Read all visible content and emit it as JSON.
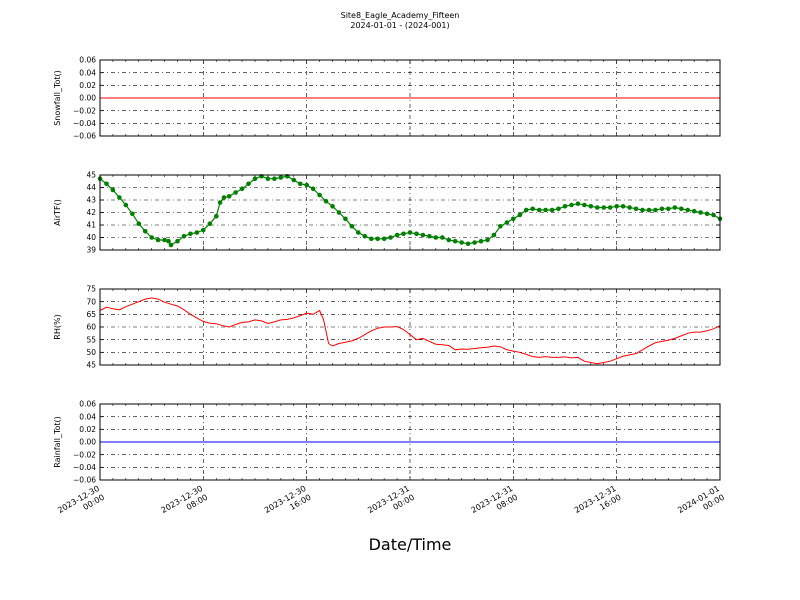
{
  "figure": {
    "title_line1": "Site8_Eagle_Academy_Fifteen",
    "title_line2": "2024-01-01 - (2024-001)",
    "xlabel": "Date/Time"
  },
  "chart_data": [
    {
      "type": "line",
      "ylabel": "Snowfall_Tot()",
      "ylim": [
        -0.06,
        0.06
      ],
      "yticks": [
        -0.06,
        -0.04,
        -0.02,
        0.0,
        0.02,
        0.04,
        0.06
      ],
      "ytick_labels": [
        "−0.06",
        "−0.04",
        "−0.02",
        "0.00",
        "0.02",
        "0.04",
        "0.06"
      ],
      "xlim": [
        0,
        48
      ],
      "x_unit": "hours since 2023-12-30 00:00",
      "grid": true,
      "series": [
        {
          "color": "#ff0000",
          "marker": false,
          "points": [
            [
              0,
              0.0
            ],
            [
              48,
              0.0
            ]
          ]
        }
      ]
    },
    {
      "type": "line",
      "ylabel": "AirTF()",
      "ylim": [
        39,
        45
      ],
      "yticks": [
        39,
        40,
        41,
        42,
        43,
        44,
        45
      ],
      "ytick_labels": [
        "39",
        "40",
        "41",
        "42",
        "43",
        "44",
        "45"
      ],
      "xlim": [
        0,
        48
      ],
      "grid": true,
      "series": [
        {
          "color": "#008000",
          "marker": true,
          "points": [
            [
              0,
              44.7
            ],
            [
              0.5,
              44.3
            ],
            [
              1,
              43.8
            ],
            [
              1.5,
              43.2
            ],
            [
              2,
              42.6
            ],
            [
              2.5,
              41.9
            ],
            [
              3,
              41.1
            ],
            [
              3.5,
              40.5
            ],
            [
              4,
              40.0
            ],
            [
              4.5,
              39.8
            ],
            [
              5,
              39.8
            ],
            [
              5.3,
              39.7
            ],
            [
              5.5,
              39.4
            ],
            [
              6,
              39.7
            ],
            [
              6.5,
              40.1
            ],
            [
              7,
              40.3
            ],
            [
              7.5,
              40.4
            ],
            [
              8,
              40.6
            ],
            [
              8.5,
              41.1
            ],
            [
              9,
              41.7
            ],
            [
              9.3,
              42.8
            ],
            [
              9.6,
              43.2
            ],
            [
              10,
              43.3
            ],
            [
              10.5,
              43.6
            ],
            [
              11,
              43.9
            ],
            [
              11.5,
              44.3
            ],
            [
              12,
              44.7
            ],
            [
              12.5,
              44.9
            ],
            [
              13,
              44.7
            ],
            [
              13.5,
              44.7
            ],
            [
              14,
              44.8
            ],
            [
              14.5,
              44.9
            ],
            [
              15,
              44.6
            ],
            [
              15.5,
              44.3
            ],
            [
              16,
              44.2
            ],
            [
              16.5,
              43.9
            ],
            [
              17,
              43.4
            ],
            [
              17.5,
              42.9
            ],
            [
              18,
              42.5
            ],
            [
              18.5,
              42.0
            ],
            [
              19,
              41.5
            ],
            [
              19.5,
              40.9
            ],
            [
              20,
              40.4
            ],
            [
              20.5,
              40.1
            ],
            [
              21,
              39.9
            ],
            [
              21.5,
              39.9
            ],
            [
              22,
              39.9
            ],
            [
              22.5,
              40.0
            ],
            [
              23,
              40.2
            ],
            [
              23.5,
              40.3
            ],
            [
              24,
              40.4
            ],
            [
              24.5,
              40.3
            ],
            [
              25,
              40.2
            ],
            [
              25.5,
              40.1
            ],
            [
              26,
              40.0
            ],
            [
              26.5,
              40.0
            ],
            [
              27,
              39.8
            ],
            [
              27.5,
              39.7
            ],
            [
              28,
              39.6
            ],
            [
              28.5,
              39.5
            ],
            [
              29,
              39.6
            ],
            [
              29.5,
              39.7
            ],
            [
              30,
              39.8
            ],
            [
              30.5,
              40.2
            ],
            [
              31,
              40.9
            ],
            [
              31.5,
              41.2
            ],
            [
              32,
              41.5
            ],
            [
              32.5,
              41.8
            ],
            [
              33,
              42.2
            ],
            [
              33.5,
              42.3
            ],
            [
              34,
              42.2
            ],
            [
              34.5,
              42.2
            ],
            [
              35,
              42.2
            ],
            [
              35.5,
              42.3
            ],
            [
              36,
              42.5
            ],
            [
              36.5,
              42.6
            ],
            [
              37,
              42.7
            ],
            [
              37.5,
              42.6
            ],
            [
              38,
              42.5
            ],
            [
              38.5,
              42.4
            ],
            [
              39,
              42.4
            ],
            [
              39.5,
              42.4
            ],
            [
              40,
              42.5
            ],
            [
              40.5,
              42.5
            ],
            [
              41,
              42.4
            ],
            [
              41.5,
              42.3
            ],
            [
              42,
              42.2
            ],
            [
              42.5,
              42.2
            ],
            [
              43,
              42.2
            ],
            [
              43.5,
              42.3
            ],
            [
              44,
              42.3
            ],
            [
              44.5,
              42.4
            ],
            [
              45,
              42.3
            ],
            [
              45.5,
              42.2
            ],
            [
              46,
              42.1
            ],
            [
              46.5,
              42.0
            ],
            [
              47,
              41.9
            ],
            [
              47.5,
              41.8
            ],
            [
              48,
              41.5
            ]
          ]
        }
      ]
    },
    {
      "type": "line",
      "ylabel": "RH(%)",
      "ylim": [
        45,
        75
      ],
      "yticks": [
        45,
        50,
        55,
        60,
        65,
        70,
        75
      ],
      "ytick_labels": [
        "45",
        "50",
        "55",
        "60",
        "65",
        "70",
        "75"
      ],
      "xlim": [
        0,
        48
      ],
      "grid": true,
      "series": [
        {
          "color": "#ff0000",
          "marker": false,
          "points": [
            [
              0,
              66.5
            ],
            [
              0.5,
              67.8
            ],
            [
              1,
              67.2
            ],
            [
              1.5,
              66.8
            ],
            [
              2,
              68.0
            ],
            [
              2.5,
              69.0
            ],
            [
              3,
              70.0
            ],
            [
              3.5,
              71.0
            ],
            [
              4,
              71.5
            ],
            [
              4.5,
              71.0
            ],
            [
              5,
              69.8
            ],
            [
              5.5,
              69.0
            ],
            [
              6,
              68.3
            ],
            [
              6.5,
              66.8
            ],
            [
              7,
              65.0
            ],
            [
              7.5,
              63.5
            ],
            [
              8,
              62.2
            ],
            [
              8.5,
              61.5
            ],
            [
              9,
              61.3
            ],
            [
              9.5,
              60.5
            ],
            [
              10,
              60.0
            ],
            [
              10.5,
              61.0
            ],
            [
              11,
              61.8
            ],
            [
              11.5,
              62.0
            ],
            [
              12,
              62.8
            ],
            [
              12.5,
              62.4
            ],
            [
              13,
              61.4
            ],
            [
              13.5,
              62.0
            ],
            [
              14,
              62.8
            ],
            [
              14.5,
              63.0
            ],
            [
              15,
              63.6
            ],
            [
              15.5,
              64.5
            ],
            [
              16,
              65.5
            ],
            [
              16.5,
              65.0
            ],
            [
              17,
              66.5
            ],
            [
              17.3,
              63.0
            ],
            [
              17.7,
              53.5
            ],
            [
              18,
              52.5
            ],
            [
              18.5,
              53.5
            ],
            [
              19,
              54.0
            ],
            [
              19.5,
              54.5
            ],
            [
              20,
              55.5
            ],
            [
              20.5,
              57.0
            ],
            [
              21,
              58.5
            ],
            [
              21.5,
              59.5
            ],
            [
              22,
              60.0
            ],
            [
              22.5,
              60.0
            ],
            [
              23,
              60.2
            ],
            [
              23.5,
              59.0
            ],
            [
              24,
              57.0
            ],
            [
              24.5,
              55.0
            ],
            [
              25,
              55.5
            ],
            [
              25.5,
              54.3
            ],
            [
              26,
              53.2
            ],
            [
              26.5,
              53.0
            ],
            [
              27,
              52.7
            ],
            [
              27.5,
              51.0
            ],
            [
              28,
              51.3
            ],
            [
              28.5,
              51.2
            ],
            [
              29,
              51.5
            ],
            [
              29.5,
              51.8
            ],
            [
              30,
              52.0
            ],
            [
              30.5,
              52.5
            ],
            [
              31,
              52.2
            ],
            [
              31.5,
              51.0
            ],
            [
              32,
              50.5
            ],
            [
              32.5,
              50.0
            ],
            [
              33,
              49.2
            ],
            [
              33.5,
              48.3
            ],
            [
              34,
              48.0
            ],
            [
              34.5,
              48.3
            ],
            [
              35,
              48.0
            ],
            [
              35.5,
              48.0
            ],
            [
              36,
              48.2
            ],
            [
              36.5,
              47.8
            ],
            [
              37,
              48.0
            ],
            [
              37.5,
              46.5
            ],
            [
              38,
              46.0
            ],
            [
              38.5,
              45.5
            ],
            [
              39,
              46.0
            ],
            [
              39.5,
              46.5
            ],
            [
              40,
              47.5
            ],
            [
              40.5,
              48.5
            ],
            [
              41,
              49.0
            ],
            [
              41.5,
              49.5
            ],
            [
              42,
              51.0
            ],
            [
              42.5,
              52.5
            ],
            [
              43,
              53.8
            ],
            [
              43.5,
              54.3
            ],
            [
              44,
              54.8
            ],
            [
              44.5,
              55.5
            ],
            [
              45,
              56.5
            ],
            [
              45.5,
              57.5
            ],
            [
              46,
              58.0
            ],
            [
              46.5,
              58.0
            ],
            [
              47,
              58.5
            ],
            [
              47.5,
              59.3
            ],
            [
              48,
              60.5
            ]
          ]
        }
      ]
    },
    {
      "type": "line",
      "ylabel": "Rainfall_Tot()",
      "ylim": [
        -0.06,
        0.06
      ],
      "yticks": [
        -0.06,
        -0.04,
        -0.02,
        0.0,
        0.02,
        0.04,
        0.06
      ],
      "ytick_labels": [
        "−0.06",
        "−0.04",
        "−0.02",
        "0.00",
        "0.02",
        "0.04",
        "0.06"
      ],
      "xlim": [
        0,
        48
      ],
      "grid": true,
      "series": [
        {
          "color": "#0000ff",
          "marker": false,
          "points": [
            [
              0,
              0.0
            ],
            [
              48,
              0.0
            ]
          ]
        }
      ]
    }
  ],
  "xticks": {
    "values": [
      0,
      8,
      16,
      24,
      32,
      40,
      48
    ],
    "labels": [
      [
        "2023-12-30",
        "00:00"
      ],
      [
        "2023-12-30",
        "08:00"
      ],
      [
        "2023-12-30",
        "16:00"
      ],
      [
        "2023-12-31",
        "00:00"
      ],
      [
        "2023-12-31",
        "08:00"
      ],
      [
        "2023-12-31",
        "16:00"
      ],
      [
        "2024-01-01",
        "00:00"
      ]
    ]
  }
}
